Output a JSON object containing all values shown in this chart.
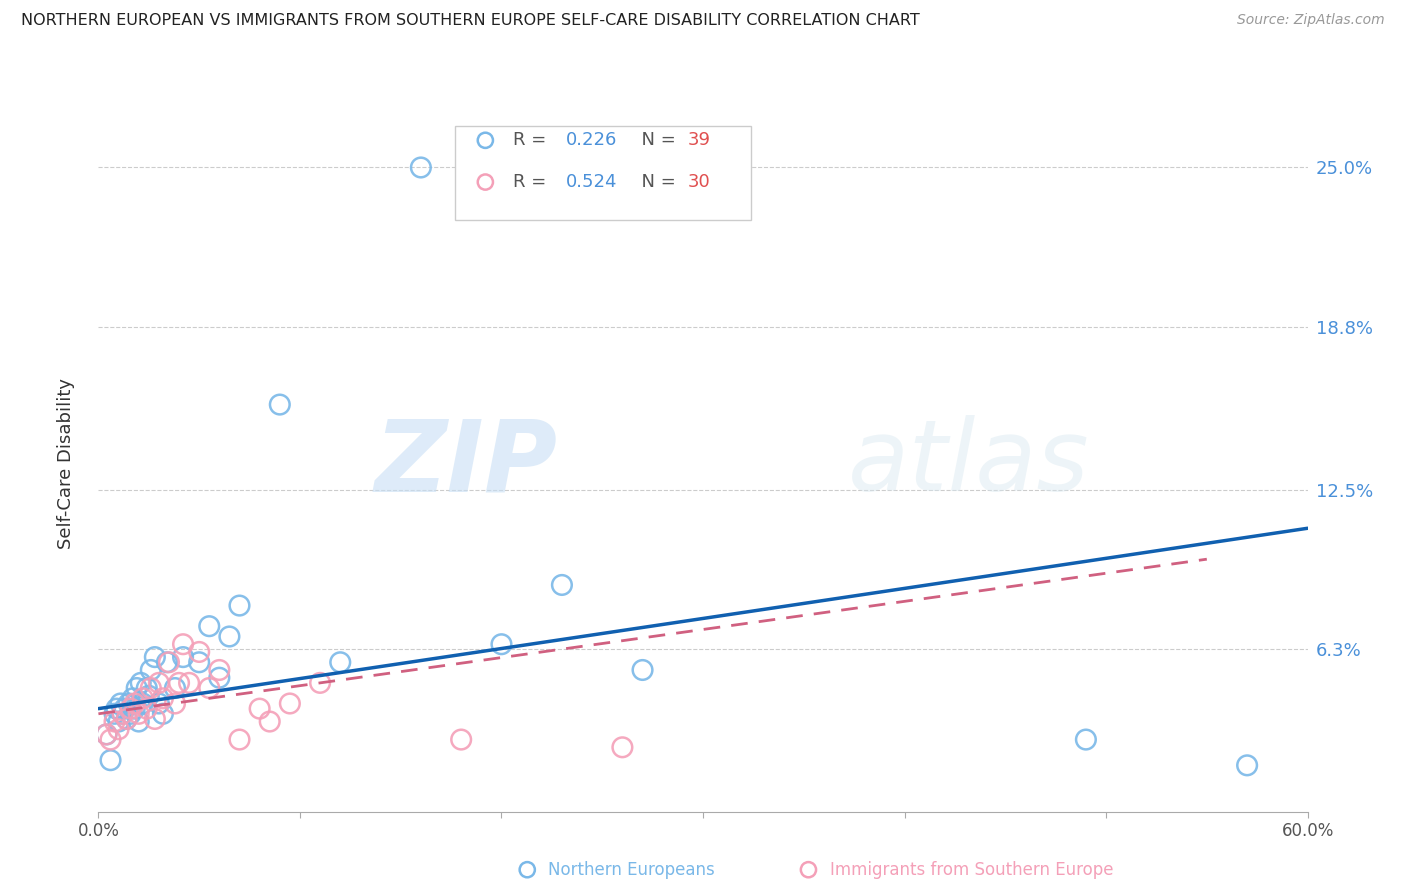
{
  "title": "NORTHERN EUROPEAN VS IMMIGRANTS FROM SOUTHERN EUROPE SELF-CARE DISABILITY CORRELATION CHART",
  "source": "Source: ZipAtlas.com",
  "ylabel": "Self-Care Disability",
  "ytick_labels": [
    "25.0%",
    "18.8%",
    "12.5%",
    "6.3%"
  ],
  "ytick_values": [
    0.25,
    0.188,
    0.125,
    0.063
  ],
  "xlim": [
    0.0,
    0.6
  ],
  "ylim": [
    0.0,
    0.27
  ],
  "legend_r1": "R = 0.226",
  "legend_n1": "N = 39",
  "legend_r2": "R = 0.524",
  "legend_n2": "N = 30",
  "color_blue": "#7ab8e8",
  "color_pink": "#f4a0b8",
  "color_blue_line": "#1060b0",
  "color_pink_line": "#d06080",
  "color_axis_label": "#4a90d9",
  "color_rval": "#4a90d9",
  "color_nval": "#e05050",
  "watermark_zip": "ZIP",
  "watermark_atlas": "atlas",
  "blue_x": [
    0.004,
    0.006,
    0.008,
    0.009,
    0.01,
    0.011,
    0.012,
    0.013,
    0.014,
    0.015,
    0.016,
    0.017,
    0.018,
    0.019,
    0.02,
    0.021,
    0.022,
    0.024,
    0.025,
    0.026,
    0.028,
    0.03,
    0.032,
    0.034,
    0.038,
    0.042,
    0.05,
    0.055,
    0.06,
    0.065,
    0.07,
    0.09,
    0.12,
    0.16,
    0.2,
    0.23,
    0.27,
    0.49,
    0.57
  ],
  "blue_y": [
    0.03,
    0.02,
    0.038,
    0.04,
    0.035,
    0.042,
    0.038,
    0.04,
    0.036,
    0.042,
    0.038,
    0.044,
    0.04,
    0.048,
    0.035,
    0.05,
    0.042,
    0.048,
    0.045,
    0.055,
    0.06,
    0.042,
    0.038,
    0.058,
    0.048,
    0.06,
    0.058,
    0.072,
    0.052,
    0.068,
    0.08,
    0.158,
    0.058,
    0.25,
    0.065,
    0.088,
    0.055,
    0.028,
    0.018
  ],
  "pink_x": [
    0.004,
    0.006,
    0.008,
    0.01,
    0.012,
    0.014,
    0.016,
    0.018,
    0.02,
    0.022,
    0.024,
    0.026,
    0.028,
    0.03,
    0.032,
    0.035,
    0.038,
    0.04,
    0.042,
    0.045,
    0.05,
    0.055,
    0.06,
    0.07,
    0.08,
    0.085,
    0.095,
    0.11,
    0.18,
    0.26
  ],
  "pink_y": [
    0.03,
    0.028,
    0.035,
    0.032,
    0.038,
    0.036,
    0.04,
    0.042,
    0.038,
    0.044,
    0.04,
    0.048,
    0.036,
    0.05,
    0.044,
    0.058,
    0.042,
    0.05,
    0.065,
    0.05,
    0.062,
    0.048,
    0.055,
    0.028,
    0.04,
    0.035,
    0.042,
    0.05,
    0.028,
    0.025
  ],
  "blue_line_x": [
    0.0,
    0.6
  ],
  "blue_line_y": [
    0.04,
    0.11
  ],
  "pink_line_x": [
    0.0,
    0.55
  ],
  "pink_line_y": [
    0.038,
    0.098
  ]
}
